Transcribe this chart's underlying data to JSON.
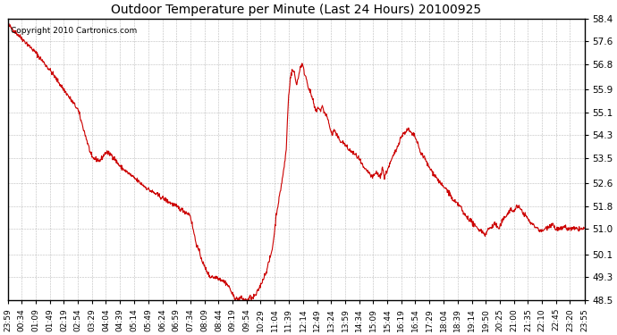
{
  "title": "Outdoor Temperature per Minute (Last 24 Hours) 20100925",
  "copyright_text": "Copyright 2010 Cartronics.com",
  "line_color": "#cc0000",
  "bg_color": "#ffffff",
  "plot_bg_color": "#ffffff",
  "grid_color": "#aaaaaa",
  "yticks": [
    48.5,
    49.3,
    50.1,
    51.0,
    51.8,
    52.6,
    53.5,
    54.3,
    55.1,
    55.9,
    56.8,
    57.6,
    58.4
  ],
  "ymin": 48.5,
  "ymax": 58.4,
  "xtick_labels": [
    "23:59",
    "00:34",
    "01:09",
    "01:49",
    "02:19",
    "02:54",
    "03:29",
    "04:04",
    "04:39",
    "05:14",
    "05:49",
    "06:24",
    "06:59",
    "07:34",
    "08:09",
    "08:44",
    "09:19",
    "09:54",
    "10:29",
    "11:04",
    "11:39",
    "12:14",
    "12:49",
    "13:24",
    "13:59",
    "14:34",
    "15:09",
    "15:44",
    "16:19",
    "16:54",
    "17:29",
    "18:04",
    "18:39",
    "19:14",
    "19:50",
    "20:25",
    "21:00",
    "21:35",
    "22:10",
    "22:45",
    "23:20",
    "23:55"
  ]
}
